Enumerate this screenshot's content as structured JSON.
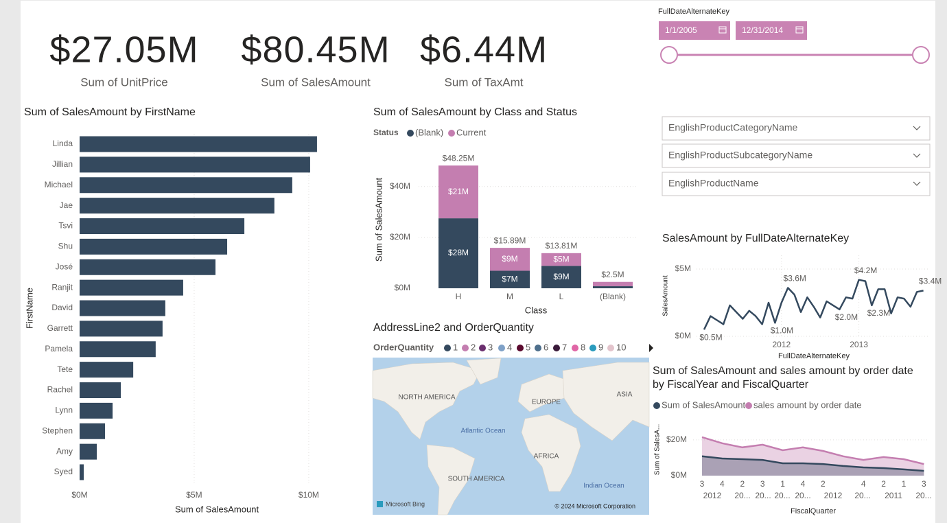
{
  "cards": [
    {
      "value": "$27.05M",
      "label": "Sum of UnitPrice"
    },
    {
      "value": "$80.45M",
      "label": "Sum of SalesAmount"
    },
    {
      "value": "$6.44M",
      "label": "Sum of TaxAmt"
    }
  ],
  "date_slicer": {
    "title": "FullDateAlternateKey",
    "start": "1/1/2005",
    "end": "12/31/2014"
  },
  "dropdowns": [
    "EnglishProductCategoryName",
    "EnglishProductSubcategoryName",
    "EnglishProductName"
  ],
  "chart_data": [
    {
      "type": "hbar",
      "title": "Sum of SalesAmount by FirstName",
      "x_label": "Sum of SalesAmount",
      "y_label": "FirstName",
      "categories": [
        "Linda",
        "Jillian",
        "Michael",
        "Jae",
        "Tsvi",
        "Shu",
        "José",
        "Ranjit",
        "David",
        "Garrett",
        "Pamela",
        "Tete",
        "Rachel",
        "Lynn",
        "Stephen",
        "Amy",
        "Syed"
      ],
      "values": [
        10360000,
        10060000,
        9280000,
        8500000,
        7190000,
        6440000,
        5930000,
        4520000,
        3740000,
        3620000,
        3320000,
        2340000,
        1800000,
        1440000,
        1110000,
        750000,
        180000
      ],
      "color": "#34495e",
      "xlim": [
        0,
        11500000
      ],
      "xticks": [
        {
          "value": 0,
          "label": "$0M"
        },
        {
          "value": 5000000,
          "label": "$5M"
        },
        {
          "value": 10000000,
          "label": "$10M"
        }
      ],
      "grid": true
    },
    {
      "type": "stacked_bar",
      "title": "Sum of SalesAmount by Class and Status",
      "legend_title": "Status",
      "x_label": "Class",
      "y_label": "Sum of SalesAmount",
      "categories": [
        "H",
        "M",
        "L",
        "(Blank)"
      ],
      "series": [
        {
          "name": "(Blank)",
          "color": "#34495e",
          "values": [
            27500000,
            6890000,
            8810000,
            800000
          ],
          "value_labels": [
            "$28M",
            "$7M",
            "$9M",
            null
          ]
        },
        {
          "name": "Current",
          "color": "#c47eb0",
          "values": [
            20750000,
            9000000,
            5000000,
            1700000
          ],
          "value_labels": [
            "$21M",
            "$9M",
            "$5M",
            null
          ]
        }
      ],
      "total_labels": [
        "$48.25M",
        "$15.89M",
        "$13.81M",
        "$2.5M"
      ],
      "ylim": [
        0,
        51000000
      ],
      "yticks": [
        {
          "value": 0,
          "label": "$0M"
        },
        {
          "value": 20000000,
          "label": "$20M"
        },
        {
          "value": 40000000,
          "label": "$40M"
        }
      ],
      "grid": true
    },
    {
      "type": "map",
      "title": "AddressLine2 and OrderQuantity",
      "legend_title": "OrderQuantity",
      "series": [
        {
          "name": "1",
          "color": "#34495e"
        },
        {
          "name": "2",
          "color": "#c47eb0"
        },
        {
          "name": "3",
          "color": "#6b2f6e"
        },
        {
          "name": "4",
          "color": "#7fa1c7"
        },
        {
          "name": "5",
          "color": "#5b0a2e"
        },
        {
          "name": "6",
          "color": "#4e6f8c"
        },
        {
          "name": "7",
          "color": "#3a1a3a"
        },
        {
          "name": "8",
          "color": "#e066a6"
        },
        {
          "name": "9",
          "color": "#2a9bbd"
        },
        {
          "name": "10",
          "color": "#e3c4cc"
        }
      ],
      "labels": [
        "NORTH AMERICA",
        "EUROPE",
        "ASIA",
        "Atlantic Ocean",
        "AFRICA",
        "SOUTH AMERICA",
        "Indian Ocean"
      ],
      "attribution": [
        "Microsoft Bing",
        "© 2024 Microsoft Corporation"
      ]
    },
    {
      "type": "line",
      "title": "SalesAmount by FullDateAlternateKey",
      "x_label": "FullDateAlternateKey",
      "y_label": "SalesAmount",
      "categories": [
        null,
        null,
        null,
        null,
        null,
        null,
        null,
        null,
        null,
        null,
        null,
        null,
        "2012",
        null,
        null,
        null,
        null,
        null,
        null,
        null,
        null,
        null,
        null,
        null,
        "2013",
        null,
        null,
        null,
        null,
        null,
        null,
        null,
        null,
        null,
        null
      ],
      "values": [
        500000,
        1500000,
        1200000,
        900000,
        2300000,
        1800000,
        1300000,
        1900000,
        1500000,
        900000,
        2500000,
        1000000,
        2500000,
        3600000,
        3100000,
        1800000,
        2900000,
        2200000,
        1400000,
        2600000,
        2300000,
        2000000,
        2900000,
        2800000,
        4200000,
        4100000,
        2300000,
        3500000,
        3500000,
        1700000,
        2900000,
        2800000,
        2200000,
        3300000,
        3400000
      ],
      "value_labels": [
        "$0.5M",
        null,
        null,
        null,
        null,
        null,
        null,
        null,
        null,
        null,
        null,
        "$1.0M",
        null,
        "$3.6M",
        null,
        null,
        null,
        null,
        null,
        null,
        null,
        "$2.0M",
        null,
        null,
        "$4.2M",
        null,
        "$2.3M",
        null,
        null,
        null,
        null,
        null,
        null,
        null,
        "$3.4M"
      ],
      "color": "#34495e",
      "ylim": [
        0,
        6000000
      ],
      "yticks": [
        {
          "value": 0,
          "label": "$0M"
        },
        {
          "value": 5000000,
          "label": "$5M"
        }
      ],
      "grid": true
    },
    {
      "type": "area",
      "title": "Sum of SalesAmount and sales amount by order date by FiscalYear and FiscalQuarter",
      "x_label": "FiscalQuarter",
      "y_label": "Sum of SalesA...",
      "categories": [
        "3",
        "4",
        "2",
        "3",
        "1",
        "4",
        "2",
        null,
        "4",
        "2",
        "1",
        "3"
      ],
      "group_labels": [
        "2012",
        "20...",
        "20...",
        "20...",
        "20...",
        "2012",
        "20...",
        "2011",
        "20..."
      ],
      "series": [
        {
          "name": "Sum of SalesAmount",
          "color": "#34495e",
          "values": [
            10800000,
            9600000,
            9200000,
            8800000,
            6900000,
            6900000,
            6500000,
            5400000,
            4600000,
            4200000,
            3500000,
            2700000
          ]
        },
        {
          "name": "sales amount by order date",
          "color": "#c47eb0",
          "values": [
            21500000,
            18100000,
            15800000,
            17300000,
            14200000,
            15800000,
            13800000,
            10800000,
            8800000,
            10400000,
            9200000,
            6500000
          ]
        }
      ],
      "ylim": [
        0,
        28000000
      ],
      "yticks": [
        {
          "value": 0,
          "label": "$0M"
        },
        {
          "value": 20000000,
          "label": "$20M"
        }
      ],
      "grid": true
    }
  ]
}
